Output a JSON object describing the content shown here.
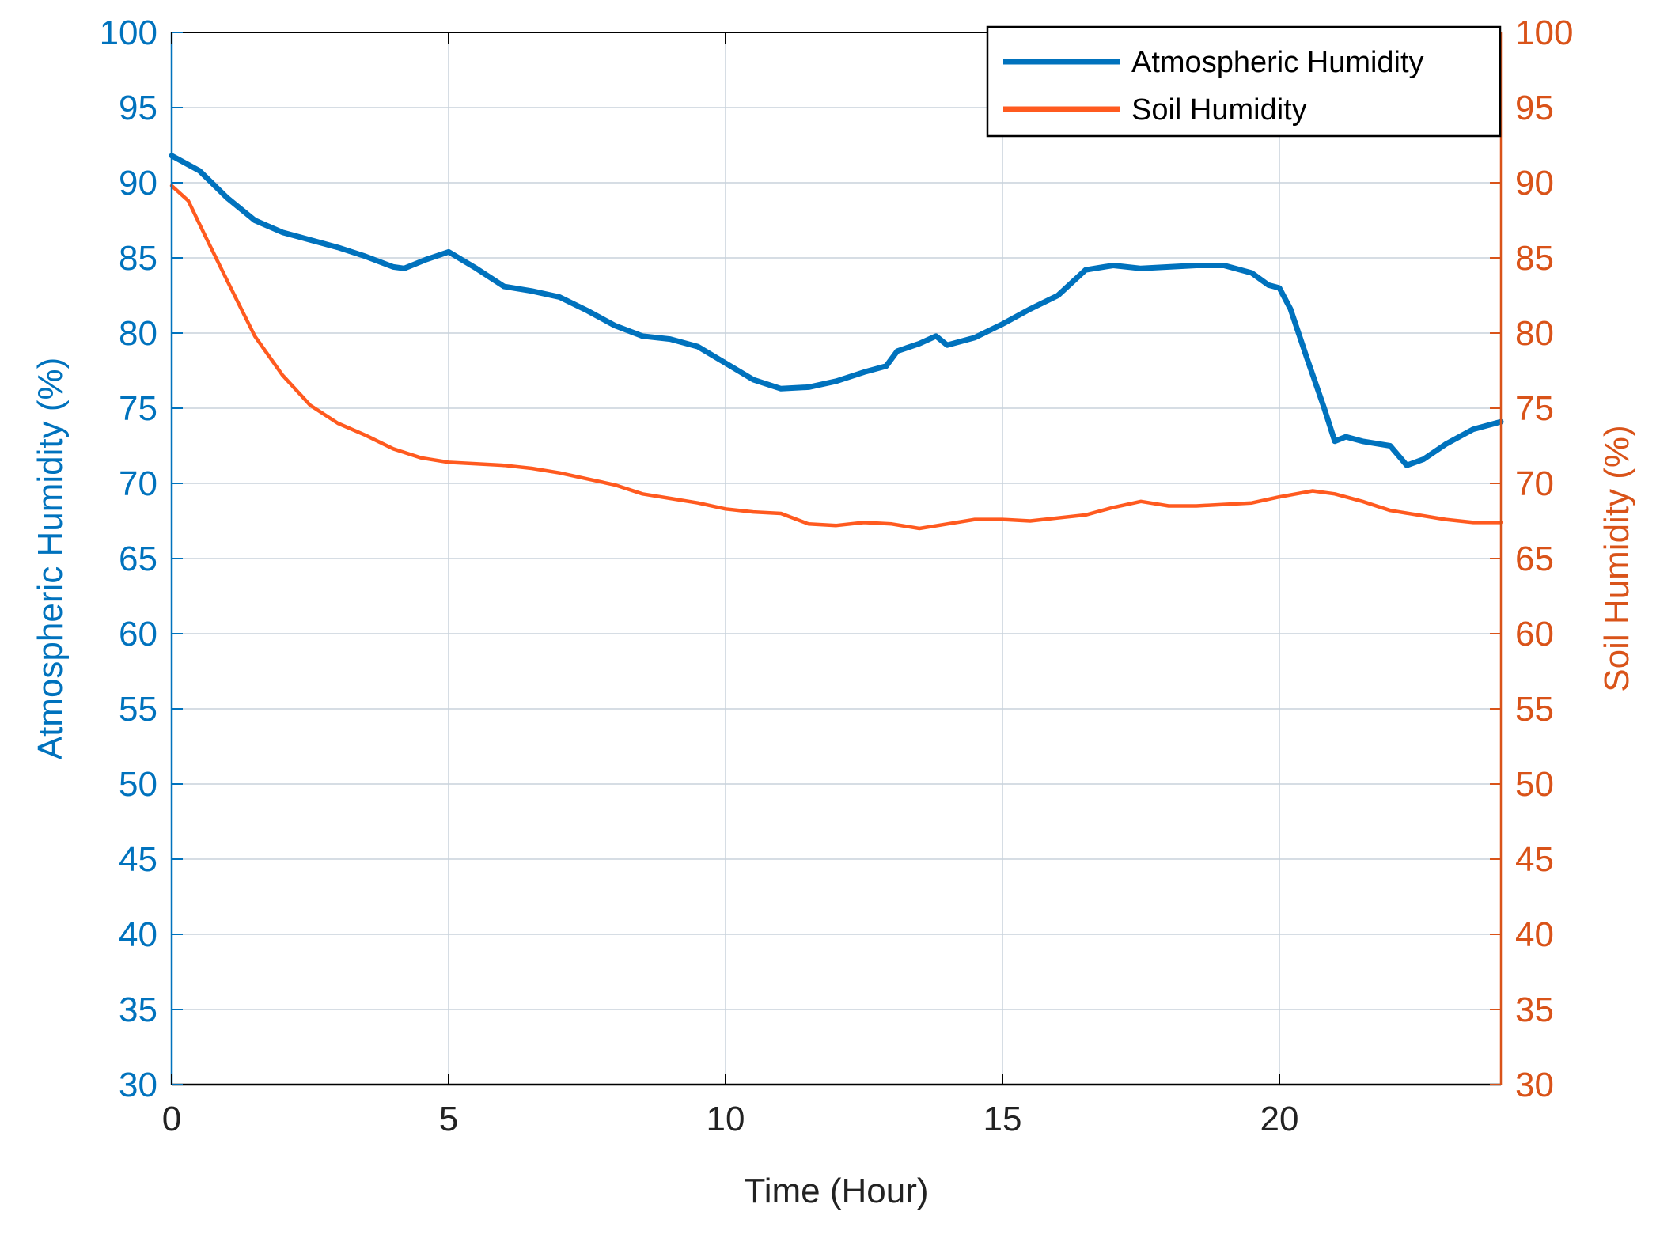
{
  "chart_data": {
    "type": "line",
    "title": "",
    "xlabel": "Time (Hour)",
    "ylabel_left": "Atmospheric Humidity (%)",
    "ylabel_right": "Soil Humidity (%)",
    "xlim": [
      0,
      24
    ],
    "ylim_left": [
      30,
      100
    ],
    "ylim_right": [
      30,
      100
    ],
    "x_ticks": [
      0,
      5,
      10,
      15,
      20
    ],
    "y_ticks": [
      30,
      35,
      40,
      45,
      50,
      55,
      60,
      65,
      70,
      75,
      80,
      85,
      90,
      95,
      100
    ],
    "grid": true,
    "legend_placement": "top-right",
    "colors": {
      "left_axis": "#0072BD",
      "right_axis": "#D95319",
      "atmospheric_line": "#0072BD",
      "soil_line": "#FF5A1F",
      "grid": "#c8d2dc",
      "frame": "#000000"
    },
    "series": [
      {
        "name": "Atmospheric Humidity",
        "axis": "left",
        "x": [
          0,
          0.5,
          1,
          1.5,
          2,
          2.5,
          3,
          3.5,
          4,
          4.2,
          4.6,
          5,
          5.5,
          6,
          6.5,
          7,
          7.5,
          8,
          8.5,
          9,
          9.5,
          10,
          10.5,
          11,
          11.5,
          12,
          12.5,
          12.9,
          13.1,
          13.5,
          13.8,
          14,
          14.5,
          15,
          15.5,
          16,
          16.5,
          17,
          17.5,
          18,
          18.5,
          19,
          19.5,
          19.8,
          20,
          20.2,
          20.5,
          20.8,
          21,
          21.2,
          21.5,
          22,
          22.3,
          22.6,
          23,
          23.5,
          24
        ],
        "values": [
          91.8,
          90.8,
          89.0,
          87.5,
          86.7,
          86.2,
          85.7,
          85.1,
          84.4,
          84.3,
          84.9,
          85.4,
          84.3,
          83.1,
          82.8,
          82.4,
          81.5,
          80.5,
          79.8,
          79.6,
          79.1,
          78.0,
          76.9,
          76.3,
          76.4,
          76.8,
          77.4,
          77.8,
          78.8,
          79.3,
          79.8,
          79.2,
          79.7,
          80.6,
          81.6,
          82.5,
          84.2,
          84.5,
          84.3,
          84.4,
          84.5,
          84.5,
          84.0,
          83.2,
          83.0,
          81.6,
          78.3,
          75.1,
          72.8,
          73.1,
          72.8,
          72.5,
          71.2,
          71.6,
          72.6,
          73.6,
          74.1
        ]
      },
      {
        "name": "Soil Humidity",
        "axis": "right",
        "x": [
          0,
          0.3,
          0.6,
          1,
          1.5,
          2,
          2.5,
          3,
          3.5,
          4,
          4.5,
          5,
          5.5,
          6,
          6.5,
          7,
          7.5,
          8,
          8.5,
          9,
          9.5,
          10,
          10.5,
          11,
          11.5,
          12,
          12.5,
          13,
          13.5,
          14,
          14.5,
          15,
          15.5,
          16,
          16.5,
          17,
          17.5,
          18,
          18.5,
          19,
          19.5,
          20,
          20.3,
          20.6,
          21,
          21.5,
          22,
          22.5,
          23,
          23.5,
          24
        ],
        "values": [
          89.8,
          88.8,
          86.5,
          83.5,
          79.8,
          77.2,
          75.2,
          74.0,
          73.2,
          72.3,
          71.7,
          71.4,
          71.3,
          71.2,
          71.0,
          70.7,
          70.3,
          69.9,
          69.3,
          69.0,
          68.7,
          68.3,
          68.1,
          68.0,
          67.3,
          67.2,
          67.4,
          67.3,
          67.0,
          67.3,
          67.6,
          67.6,
          67.5,
          67.7,
          67.9,
          68.4,
          68.8,
          68.5,
          68.5,
          68.6,
          68.7,
          69.1,
          69.3,
          69.5,
          69.3,
          68.8,
          68.2,
          67.9,
          67.6,
          67.4,
          67.4
        ]
      }
    ],
    "legend": [
      {
        "label": "Atmospheric Humidity",
        "series": 0
      },
      {
        "label": "Soil Humidity",
        "series": 1
      }
    ]
  }
}
